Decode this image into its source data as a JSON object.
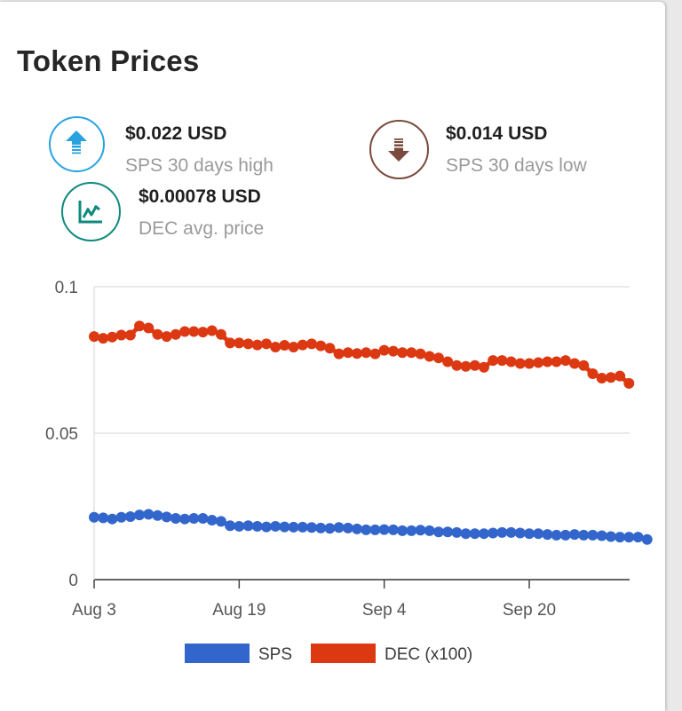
{
  "card": {
    "title": "Token Prices"
  },
  "stats": [
    {
      "value": "$0.022 USD",
      "label": "SPS 30 days high",
      "icon": "arrow-up-icon",
      "color": "#29a3e0"
    },
    {
      "value": "$0.014 USD",
      "label": "SPS 30 days low",
      "icon": "arrow-down-icon",
      "color": "#7a4a3c"
    },
    {
      "value": "$0.00078 USD",
      "label": "DEC avg. price",
      "icon": "chart-line-icon",
      "color": "#0f8a7e"
    }
  ],
  "chart_data": {
    "type": "line",
    "x_start": "Aug 3",
    "x_tick_labels": [
      "Aug 3",
      "Aug 19",
      "Sep 4",
      "Sep 20"
    ],
    "y_ticks": [
      "0",
      "0.05",
      "0.1"
    ],
    "ylim": [
      0,
      0.1
    ],
    "grid": true,
    "legend_position": "bottom",
    "series": [
      {
        "name": "SPS",
        "color": "#3366cc",
        "values": [
          0.0213,
          0.0211,
          0.0207,
          0.0213,
          0.0215,
          0.0221,
          0.0223,
          0.0219,
          0.0214,
          0.0209,
          0.0207,
          0.0209,
          0.0209,
          0.0203,
          0.0199,
          0.0184,
          0.0182,
          0.0184,
          0.0182,
          0.018,
          0.0182,
          0.018,
          0.0179,
          0.0179,
          0.0178,
          0.0176,
          0.0175,
          0.0178,
          0.0176,
          0.0173,
          0.017,
          0.017,
          0.0171,
          0.017,
          0.0167,
          0.0167,
          0.0169,
          0.0167,
          0.0163,
          0.0163,
          0.0161,
          0.0157,
          0.0157,
          0.0157,
          0.0159,
          0.0161,
          0.0161,
          0.0159,
          0.0157,
          0.0157,
          0.0154,
          0.0152,
          0.0152,
          0.0154,
          0.0152,
          0.0152,
          0.015,
          0.0147,
          0.0145,
          0.0145,
          0.0145,
          0.0137
        ]
      },
      {
        "name": "DEC (x100)",
        "color": "#dc3912",
        "values": [
          0.083,
          0.0824,
          0.0828,
          0.0835,
          0.0835,
          0.0866,
          0.0859,
          0.0837,
          0.083,
          0.0837,
          0.0847,
          0.0847,
          0.0845,
          0.085,
          0.0837,
          0.0808,
          0.0808,
          0.0805,
          0.0801,
          0.0805,
          0.0794,
          0.08,
          0.0794,
          0.0801,
          0.0805,
          0.0798,
          0.079,
          0.0771,
          0.0775,
          0.0772,
          0.0775,
          0.0771,
          0.0783,
          0.078,
          0.0775,
          0.0775,
          0.0771,
          0.0762,
          0.0757,
          0.0744,
          0.0731,
          0.0728,
          0.0731,
          0.0725,
          0.0748,
          0.0748,
          0.0744,
          0.0738,
          0.0738,
          0.0741,
          0.0744,
          0.0744,
          0.0748,
          0.0738,
          0.0731,
          0.0703,
          0.0688,
          0.069,
          0.0695,
          0.067
        ]
      }
    ]
  }
}
